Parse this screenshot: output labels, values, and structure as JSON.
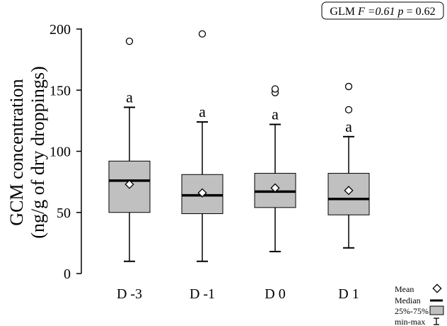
{
  "chart_data": {
    "type": "box",
    "annotation": {
      "prefix": "GLM ",
      "f_symbol": "F",
      "f_value": " =0.61 ",
      "p_symbol": "p",
      "p_value": " = 0.62"
    },
    "ylabel_line1": "GCM concentration",
    "ylabel_line2": "(ng/g of dry droppings)",
    "ylim": [
      0,
      200
    ],
    "yticks": [
      0,
      50,
      100,
      150,
      200
    ],
    "categories": [
      "D -3",
      "D -1",
      "D 0",
      "D 1"
    ],
    "boxes": [
      {
        "min": 10,
        "q1": 50,
        "median": 76,
        "q3": 92,
        "max": 136,
        "mean": 73,
        "outliers": [
          190
        ],
        "letter": "a"
      },
      {
        "min": 10,
        "q1": 49,
        "median": 64,
        "q3": 81,
        "max": 124,
        "mean": 66,
        "outliers": [
          196
        ],
        "letter": "a"
      },
      {
        "min": 18,
        "q1": 54,
        "median": 67,
        "q3": 82,
        "max": 122,
        "mean": 70,
        "outliers": [
          148,
          151
        ],
        "letter": "a"
      },
      {
        "min": 21,
        "q1": 48,
        "median": 61,
        "q3": 82,
        "max": 112,
        "mean": 68,
        "outliers": [
          134,
          153
        ],
        "letter": "a"
      }
    ],
    "legend": {
      "mean": "Mean",
      "median": "Median",
      "iqr": "25%-75%",
      "range": "min-max"
    },
    "colors": {
      "box_fill": "#c0c0c0",
      "stroke": "#000000"
    }
  }
}
